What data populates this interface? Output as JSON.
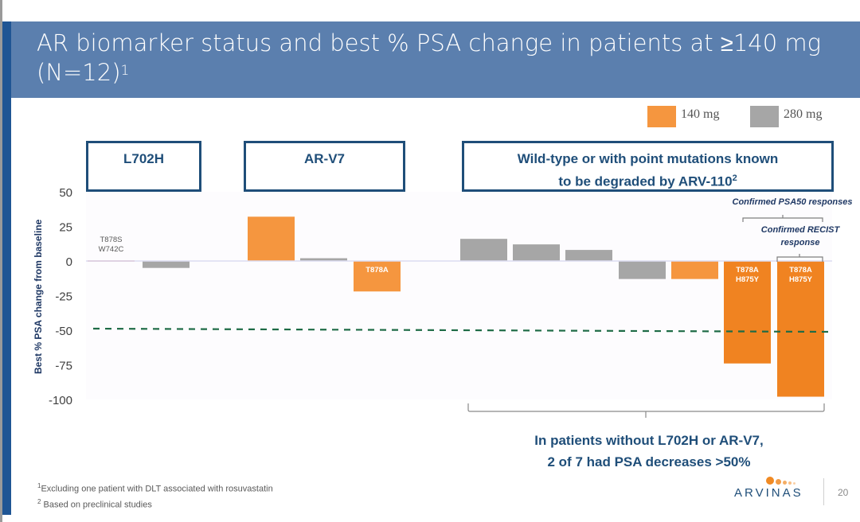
{
  "slide": {
    "title": "AR biomarker status and best % PSA change in patients at ≥140 mg (N=12)",
    "title_line1": "AR biomarker status and best % PSA change in patients at ≥140 mg",
    "title_line2": "(N=12)",
    "title_superscript": "1",
    "page_number": "20",
    "logo_text": "ARVINAS"
  },
  "categories": [
    {
      "label": "L702H"
    },
    {
      "label": "AR-V7"
    },
    {
      "label_line1": "Wild-type or with point mutations known",
      "label_line2": "to be degraded by ARV-110",
      "superscript": "2"
    }
  ],
  "annotations": {
    "psa50": "Confirmed PSA50 responses",
    "recist_line1": "Confirmed RECIST",
    "recist_line2": "response",
    "summary_line1": "In patients without L702H or AR-V7,",
    "summary_line2": "2 of 7 had PSA decreases >50%"
  },
  "footnotes": [
    {
      "marker": "1",
      "text": "Excluding one patient with DLT associated with rosuvastatin"
    },
    {
      "marker": "2",
      "text": " Based on preclinical studies"
    }
  ],
  "colors": {
    "dose_140": "#f5963f",
    "dose_140_dark": "#f08321",
    "dose_280": "#a6a6a6",
    "near_zero": "#e8b4b8",
    "box_border": "#1f4e79",
    "threshold_line": "#1e6b46",
    "title_band": "#5b7fae"
  },
  "chart_data": {
    "type": "bar",
    "title": "",
    "xlabel": "",
    "ylabel": "Best % PSA change from baseline",
    "ylim": [
      -100,
      50
    ],
    "yticks": [
      50,
      25,
      0,
      -25,
      -50,
      -75,
      -100
    ],
    "ytick_labels": [
      "50",
      "25",
      "0",
      "-25",
      "-50",
      "-75",
      "-100"
    ],
    "threshold": {
      "value": -50,
      "style": "dashed"
    },
    "legend": {
      "position": "top-right",
      "entries": [
        {
          "name": "140 mg",
          "color": "#f5963f"
        },
        {
          "name": "280 mg",
          "color": "#a6a6a6"
        }
      ]
    },
    "groups": [
      "L702H",
      "AR-V7",
      "Wild-type or with point mutations known to be degraded by ARV-110"
    ],
    "bars": [
      {
        "group": "L702H",
        "dose": "140 mg",
        "value": 0,
        "label": "T878S\nW742C",
        "label_line1": "T878S",
        "label_line2": "W742C"
      },
      {
        "group": "L702H",
        "dose": "280 mg",
        "value": -5
      },
      {
        "group": "AR-V7",
        "dose": "140 mg",
        "value": 32
      },
      {
        "group": "AR-V7",
        "dose": "280 mg",
        "value": 2
      },
      {
        "group": "AR-V7",
        "dose": "140 mg",
        "value": -22,
        "label": "T878A",
        "label_line1": "T878A"
      },
      {
        "group": "Wild-type",
        "dose": "280 mg",
        "value": 16
      },
      {
        "group": "Wild-type",
        "dose": "280 mg",
        "value": 12
      },
      {
        "group": "Wild-type",
        "dose": "280 mg",
        "value": 8
      },
      {
        "group": "Wild-type",
        "dose": "280 mg",
        "value": -13
      },
      {
        "group": "Wild-type",
        "dose": "140 mg",
        "value": -13
      },
      {
        "group": "Wild-type",
        "dose": "140 mg",
        "value": -74,
        "label": "T878A\nH875Y",
        "label_line1": "T878A",
        "label_line2": "H875Y"
      },
      {
        "group": "Wild-type",
        "dose": "140 mg",
        "value": -98,
        "label": "T878A\nH875Y",
        "label_line1": "T878A",
        "label_line2": "H875Y"
      }
    ]
  }
}
